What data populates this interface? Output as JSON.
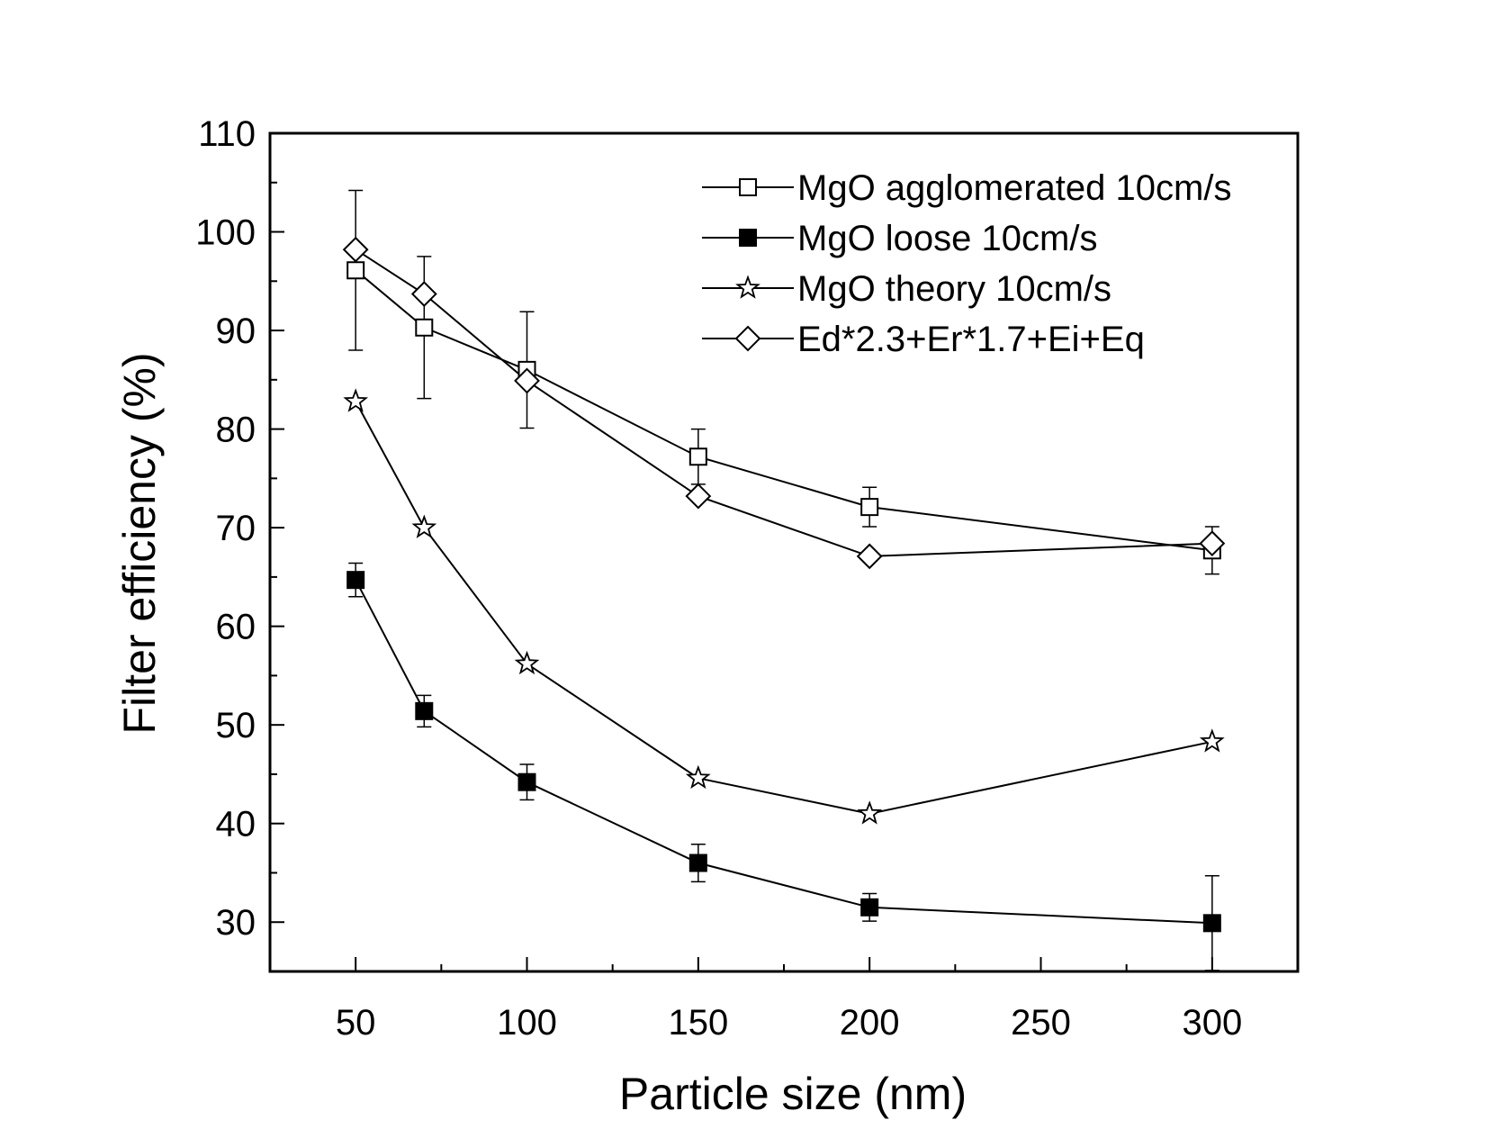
{
  "chart_data": {
    "type": "line",
    "xlabel": "Particle size (nm)",
    "ylabel": "Filter efficiency (%)",
    "xlim": [
      25,
      325
    ],
    "ylim": [
      25,
      110
    ],
    "xticks": [
      50,
      100,
      150,
      200,
      250,
      300
    ],
    "yticks": [
      30,
      40,
      50,
      60,
      70,
      80,
      90,
      100,
      110
    ],
    "x_tick_labels": [
      "50",
      "100",
      "150",
      "200",
      "250",
      "300"
    ],
    "y_tick_labels": [
      "30",
      "40",
      "50",
      "60",
      "70",
      "80",
      "90",
      "100",
      "110"
    ],
    "grid": false,
    "legend_position": "top-right",
    "x": [
      50,
      70,
      100,
      150,
      200,
      300
    ],
    "series": [
      {
        "name": "MgO agglomerated 10cm/s",
        "marker": "square-open",
        "values": [
          96.1,
          90.3,
          86.0,
          77.2,
          72.1,
          67.7
        ],
        "errors": [
          8.1,
          7.2,
          5.9,
          2.8,
          2.0,
          2.4
        ]
      },
      {
        "name": "MgO loose 10cm/s",
        "marker": "square-filled",
        "values": [
          64.7,
          51.4,
          44.2,
          36.0,
          31.5,
          29.9
        ],
        "errors": [
          1.7,
          1.6,
          1.8,
          1.9,
          1.4,
          4.8
        ]
      },
      {
        "name": "MgO theory 10cm/s",
        "marker": "star-open",
        "values": [
          82.8,
          70.0,
          56.2,
          44.6,
          41.0,
          48.3
        ],
        "errors": null
      },
      {
        "name": "Ed*2.3+Er*1.7+Ei+Eq",
        "marker": "diamond-open",
        "values": [
          98.2,
          93.7,
          84.9,
          73.2,
          67.1,
          68.4
        ],
        "errors": null
      }
    ]
  }
}
